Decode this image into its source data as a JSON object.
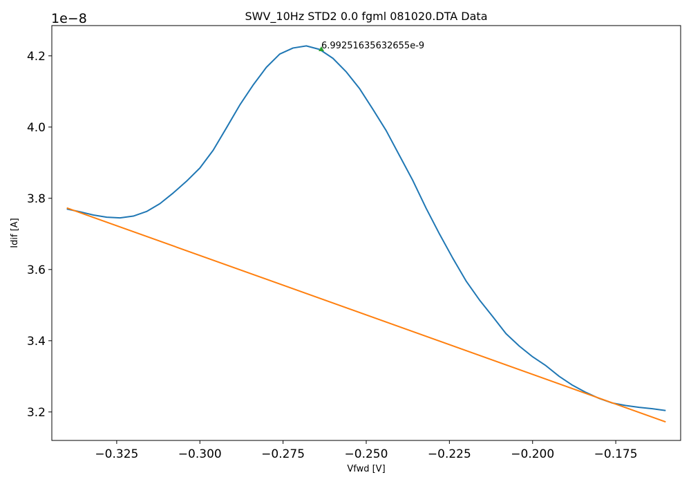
{
  "chart_data": {
    "type": "line",
    "title": "SWV_10Hz STD2 0.0 fgml 081020.DTA Data",
    "xlabel": "Vfwd [V]",
    "ylabel": "Idif [A]",
    "y_offset_label": "1e−8",
    "xlim": [
      -0.3445,
      -0.1555
    ],
    "ylim": [
      3.12,
      4.285
    ],
    "x_ticks": [
      -0.325,
      -0.3,
      -0.275,
      -0.25,
      -0.225,
      -0.2,
      -0.175
    ],
    "x_tick_labels": [
      "−0.325",
      "−0.300",
      "−0.275",
      "−0.250",
      "−0.225",
      "−0.200",
      "−0.175"
    ],
    "y_ticks": [
      3.2,
      3.4,
      3.6,
      3.8,
      4.0,
      4.2
    ],
    "y_tick_labels": [
      "3.2",
      "3.4",
      "3.6",
      "3.8",
      "4.0",
      "4.2"
    ],
    "grid": false,
    "legend": "none",
    "series": [
      {
        "color": "#1f77b4",
        "x": [
          -0.34,
          -0.336,
          -0.332,
          -0.328,
          -0.324,
          -0.32,
          -0.316,
          -0.312,
          -0.308,
          -0.304,
          -0.3,
          -0.296,
          -0.292,
          -0.288,
          -0.284,
          -0.28,
          -0.276,
          -0.272,
          -0.268,
          -0.264,
          -0.26,
          -0.256,
          -0.252,
          -0.248,
          -0.244,
          -0.24,
          -0.236,
          -0.232,
          -0.228,
          -0.224,
          -0.22,
          -0.216,
          -0.212,
          -0.208,
          -0.204,
          -0.2,
          -0.196,
          -0.192,
          -0.188,
          -0.184,
          -0.18,
          -0.176,
          -0.172,
          -0.168,
          -0.164,
          -0.16
        ],
        "y": [
          3.77,
          3.762,
          3.753,
          3.747,
          3.745,
          3.75,
          3.763,
          3.785,
          3.815,
          3.848,
          3.885,
          3.935,
          3.998,
          4.062,
          4.118,
          4.168,
          4.205,
          4.222,
          4.228,
          4.218,
          4.193,
          4.155,
          4.108,
          4.05,
          3.99,
          3.92,
          3.85,
          3.772,
          3.7,
          3.632,
          3.568,
          3.515,
          3.468,
          3.42,
          3.385,
          3.355,
          3.33,
          3.3,
          3.275,
          3.255,
          3.238,
          3.225,
          3.218,
          3.213,
          3.209,
          3.204
        ]
      },
      {
        "color": "#ff7f0e",
        "x": [
          -0.34,
          -0.16
        ],
        "y": [
          3.773,
          3.172
        ]
      }
    ],
    "annotation": {
      "text": "6.99251635632655e-9",
      "x": -0.2635,
      "y": 4.219,
      "marker_color": "#2ca02c"
    }
  }
}
